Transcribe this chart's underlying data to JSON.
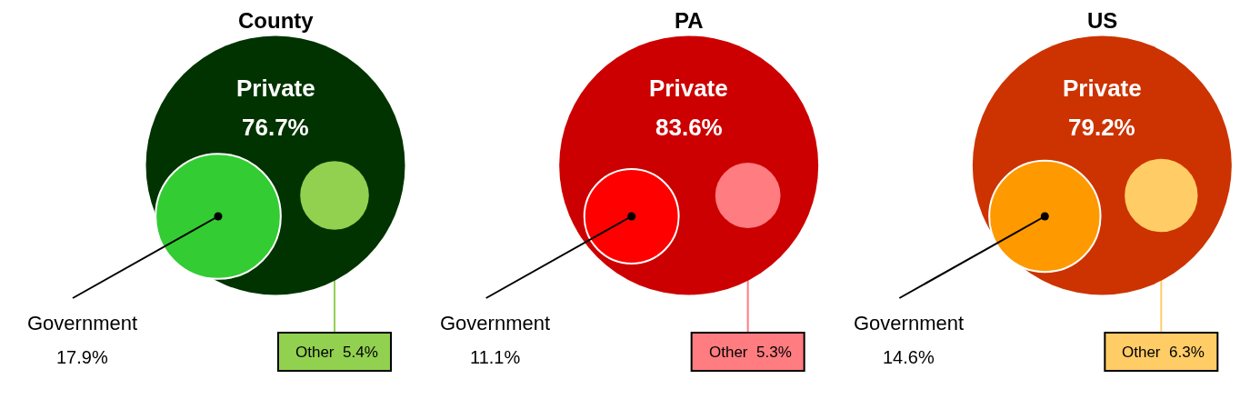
{
  "chart_data": [
    {
      "type": "other",
      "title": "County",
      "categories": [
        "Private",
        "Government",
        "Other"
      ],
      "values": [
        76.7,
        17.9,
        5.4
      ],
      "colors": [
        "#003300",
        "#33cc33",
        "#92d050"
      ],
      "value_labels": [
        "76.7%",
        "17.9%",
        "5.4%"
      ]
    },
    {
      "type": "other",
      "title": "PA",
      "categories": [
        "Private",
        "Government",
        "Other"
      ],
      "values": [
        83.6,
        11.1,
        5.3
      ],
      "colors": [
        "#cc0000",
        "#ff0000",
        "#ff7c80"
      ],
      "value_labels": [
        "83.6%",
        "11.1%",
        "5.3%"
      ]
    },
    {
      "type": "other",
      "title": "US",
      "categories": [
        "Private",
        "Government",
        "Other"
      ],
      "values": [
        79.2,
        14.6,
        6.3
      ],
      "colors": [
        "#cc3300",
        "#ff9900",
        "#ffcc66"
      ],
      "value_labels": [
        "79.2%",
        "14.6%",
        "6.3%"
      ]
    }
  ]
}
